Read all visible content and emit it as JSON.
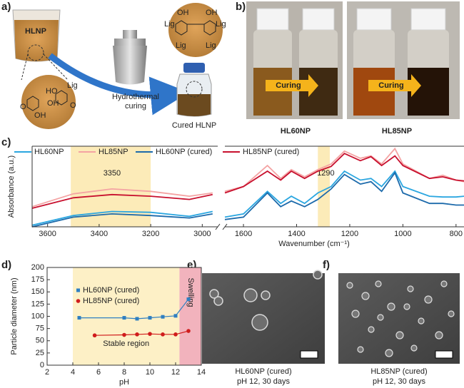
{
  "figure": {
    "panel_labels": [
      "a)",
      "b)",
      "c)",
      "d)",
      "e)",
      "f)"
    ],
    "a": {
      "beaker_label": "HLNP",
      "lig": "Lig",
      "oh": "OH",
      "ho": "HO",
      "o": "O",
      "process": [
        "Hydrothermal",
        "curing"
      ],
      "product": "Cured HLNP"
    },
    "b": {
      "arrow_label": "Curing",
      "samples": [
        "HL60NP",
        "HL85NP"
      ]
    },
    "e": {
      "caption": [
        "HL60NP (cured)",
        "pH 12, 30 days"
      ]
    },
    "f": {
      "caption": [
        "HL85NP (cured)",
        "pH 12, 30 days"
      ]
    }
  },
  "chart_data": [
    {
      "type": "line",
      "xlabel": "Wavenumber (cm⁻¹)",
      "ylabel": "Absorbance (a.u.)",
      "xlim_segments": [
        [
          3660,
          2940
        ],
        [
          1670,
          770
        ]
      ],
      "ylim": [
        0,
        1
      ],
      "xticks": [
        3600,
        3400,
        3200,
        3000,
        1600,
        1400,
        1200,
        1000,
        800
      ],
      "bands": [
        {
          "from": 3510,
          "to": 3200,
          "label": 3350
        },
        {
          "from": 1320,
          "to": 1275,
          "label": 1290
        }
      ],
      "band_color": "#fcebb8",
      "x": [
        3660,
        3500,
        3350,
        3200,
        3050,
        2960,
        2000,
        1670,
        1600,
        1510,
        1460,
        1420,
        1370,
        1320,
        1270,
        1220,
        1160,
        1120,
        1080,
        1030,
        1000,
        900,
        850,
        800,
        770
      ],
      "series": [
        {
          "name": "HL60NP",
          "color": "#2aa6e0",
          "values": [
            0.02,
            0.14,
            0.19,
            0.18,
            0.13,
            0.19,
            null,
            0.12,
            0.16,
            0.44,
            0.29,
            0.38,
            0.29,
            0.42,
            0.5,
            0.69,
            0.58,
            0.6,
            0.5,
            0.69,
            0.5,
            0.38,
            0.37,
            0.37,
            0.38
          ]
        },
        {
          "name": "HL85NP",
          "color": "#f4a3a3",
          "values": [
            0.25,
            0.41,
            0.47,
            0.44,
            0.38,
            0.42,
            null,
            0.44,
            0.5,
            0.76,
            0.6,
            0.71,
            0.62,
            0.71,
            0.78,
            0.94,
            0.85,
            0.88,
            0.78,
            0.97,
            0.78,
            0.6,
            0.64,
            0.58,
            0.56
          ]
        },
        {
          "name": "HL60NP (cured)",
          "color": "#1c6aab",
          "values": [
            0.0,
            0.12,
            0.16,
            0.14,
            0.11,
            0.16,
            null,
            0.09,
            0.12,
            0.42,
            0.25,
            0.32,
            0.25,
            0.34,
            0.47,
            0.65,
            0.53,
            0.56,
            0.44,
            0.67,
            0.42,
            0.29,
            0.29,
            0.27,
            0.27
          ]
        },
        {
          "name": "HL85NP (cured)",
          "color": "#c8102e",
          "values": [
            0.23,
            0.36,
            0.4,
            0.38,
            0.34,
            0.4,
            null,
            0.42,
            0.5,
            0.69,
            0.58,
            0.69,
            0.6,
            0.69,
            0.75,
            0.91,
            0.82,
            0.87,
            0.76,
            0.88,
            0.76,
            0.6,
            0.62,
            0.58,
            0.57
          ]
        }
      ]
    },
    {
      "type": "scatter",
      "xlabel": "pH",
      "ylabel": "Particle diameter (nm)",
      "xlim": [
        2,
        14
      ],
      "xticks": [
        2,
        4,
        6,
        8,
        10,
        12,
        14
      ],
      "ylim": [
        0,
        200
      ],
      "yticks": [
        0,
        25,
        50,
        75,
        100,
        125,
        150,
        175,
        200
      ],
      "regions": [
        {
          "from": 4,
          "to": 12.3,
          "label": "Stable region",
          "color": "#fdf0c6"
        },
        {
          "from": 12.3,
          "to": 14,
          "label": "Swelling",
          "color": "#f2b3bd"
        }
      ],
      "series": [
        {
          "name": "HL60NP (cured)",
          "color": "#2f7fc1",
          "marker": "square",
          "x": [
            4.5,
            8,
            9,
            10,
            11,
            12,
            13
          ],
          "values": [
            97,
            97,
            95,
            97,
            99,
            101,
            135
          ]
        },
        {
          "name": "HL85NP (cured)",
          "color": "#d01c1c",
          "marker": "circle",
          "x": [
            5.7,
            8,
            9,
            10,
            11,
            12,
            13
          ],
          "values": [
            61,
            62,
            63,
            64,
            63,
            63,
            70
          ]
        }
      ]
    }
  ]
}
